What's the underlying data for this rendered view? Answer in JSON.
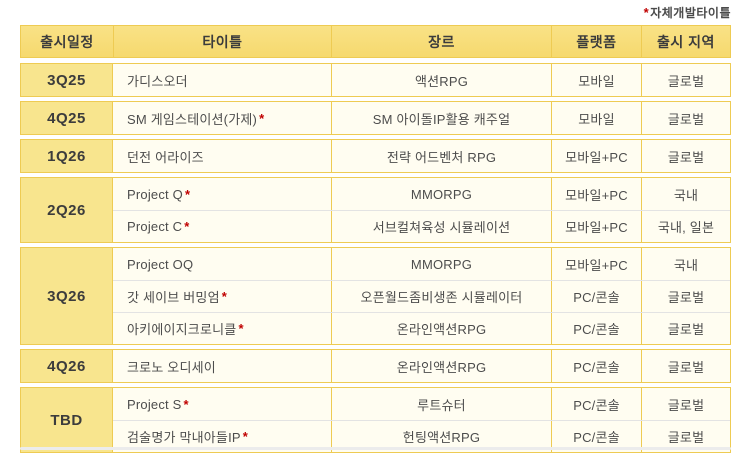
{
  "note": {
    "asterisk": "*",
    "label": "자체개발타이틀"
  },
  "table": {
    "headers": [
      "출시일정",
      "타이틀",
      "장르",
      "플랫폼",
      "출시 지역"
    ],
    "groups": [
      {
        "quarter": "3Q25",
        "rows": [
          {
            "title": "가디스오더",
            "self_dev": false,
            "genre": "액션RPG",
            "platform": "모바일",
            "region": "글로벌"
          }
        ]
      },
      {
        "quarter": "4Q25",
        "rows": [
          {
            "title": "SM 게임스테이션(가제)",
            "self_dev": true,
            "genre": "SM 아이돌IP활용 캐주얼",
            "platform": "모바일",
            "region": "글로벌"
          }
        ]
      },
      {
        "quarter": "1Q26",
        "rows": [
          {
            "title": "던전 어라이즈",
            "self_dev": false,
            "genre": "전략 어드벤처 RPG",
            "platform": "모바일+PC",
            "region": "글로벌"
          }
        ]
      },
      {
        "quarter": "2Q26",
        "rows": [
          {
            "title": "Project Q",
            "self_dev": true,
            "genre": "MMORPG",
            "platform": "모바일+PC",
            "region": "국내"
          },
          {
            "title": "Project C",
            "self_dev": true,
            "genre": "서브컬쳐육성 시뮬레이션",
            "platform": "모바일+PC",
            "region": "국내, 일본"
          }
        ]
      },
      {
        "quarter": "3Q26",
        "rows": [
          {
            "title": "Project OQ",
            "self_dev": false,
            "genre": "MMORPG",
            "platform": "모바일+PC",
            "region": "국내"
          },
          {
            "title": "갓 세이브 버밍엄",
            "self_dev": true,
            "genre": "오픈월드좀비생존 시뮬레이터",
            "platform": "PC/콘솔",
            "region": "글로벌"
          },
          {
            "title": "아키에이지크로니클",
            "self_dev": true,
            "genre": "온라인액션RPG",
            "platform": "PC/콘솔",
            "region": "글로벌"
          }
        ]
      },
      {
        "quarter": "4Q26",
        "rows": [
          {
            "title": "크로노 오디세이",
            "self_dev": false,
            "genre": "온라인액션RPG",
            "platform": "PC/콘솔",
            "region": "글로벌"
          }
        ]
      },
      {
        "quarter": "TBD",
        "rows": [
          {
            "title": "Project S",
            "self_dev": true,
            "genre": "루트슈터",
            "platform": "PC/콘솔",
            "region": "글로벌"
          },
          {
            "title": "검술명가 막내아들IP",
            "self_dev": true,
            "genre": "헌팅액션RPG",
            "platform": "PC/콘솔",
            "region": "글로벌"
          }
        ]
      }
    ]
  },
  "colors": {
    "header_bg": "#f8dd78",
    "quarter_bg": "#f8e58e",
    "cell_bg": "#fffdf1",
    "border_gold": "#eecb53",
    "asterisk_red": "#c00000"
  }
}
